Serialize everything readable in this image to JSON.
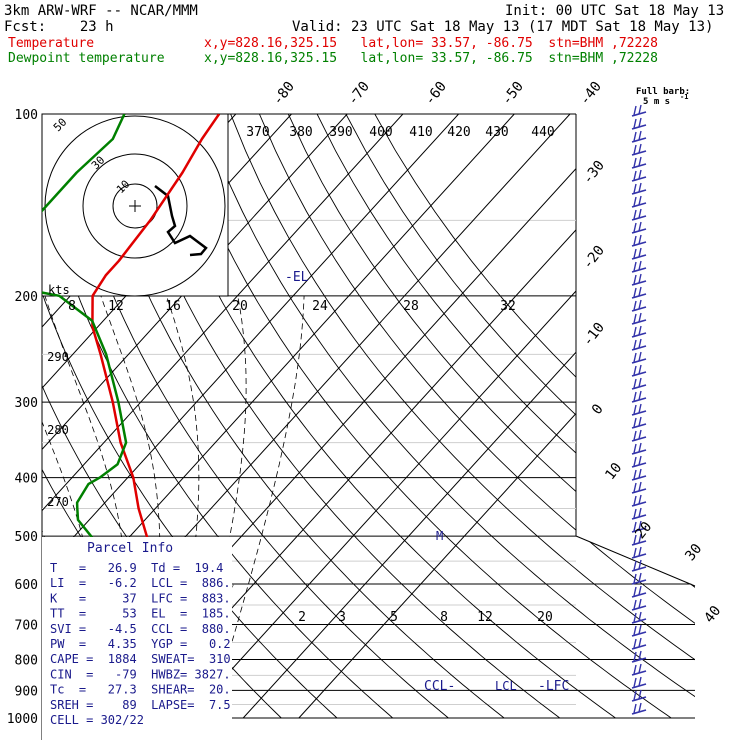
{
  "header": {
    "model": "3km ARW-WRF -- NCAR/MMM",
    "init": "Init: 00 UTC Sat 18 May 13",
    "fcst": "Fcst:    23 h",
    "valid": "Valid: 23 UTC Sat 18 May 13 (17 MDT Sat 18 May 13)",
    "temp_label": "Temperature",
    "temp_loc": "x,y=828.16,325.15   lat,lon= 33.57, -86.75  stn=BHM ,72228",
    "dew_label": "Dewpoint temperature",
    "dew_loc": "x,y=828.16,325.15   lat,lon= 33.57, -86.75  stn=BHM ,72228"
  },
  "labels": {
    "full_barb": "Full barb:",
    "barb_unit": "5 m s",
    "barb_exp": "-1",
    "kts": "kts",
    "el": "-EL",
    "ccl": "CCL-",
    "lcl": "LCL",
    "lfc": "-LFC",
    "m": "M"
  },
  "parcel_info": {
    "title": "Parcel Info",
    "rows": [
      "T   =   26.9  Td =  19.4",
      "LI  =   -6.2  LCL =  886.",
      "K   =     37  LFC =  883.",
      "TT  =     53  EL  =  185.",
      "SVI =   -4.5  CCL =  880.",
      "PW  =   4.35  YGP =   0.2",
      "CAPE =  1884  SWEAT=  310",
      "CIN  =   -79  HWBZ= 3827.",
      "Tc  =   27.3  SHEAR=  20.",
      "SREH =    89  LAPSE=  7.5",
      "CELL = 302/22"
    ]
  },
  "chart_data": {
    "type": "line",
    "title": "",
    "xlabel": "",
    "ylabel": "",
    "y_scale": "log",
    "pressure_levels": [
      "100",
      "200",
      "300",
      "400",
      "500",
      "600",
      "700",
      "800",
      "900",
      "1000"
    ],
    "temperature_axis_labels": [
      "-80",
      "-70",
      "-60",
      "-50",
      "-40",
      "-30",
      "-20",
      "-10",
      "0",
      "10",
      "20",
      "30",
      "40"
    ],
    "theta_labels": [
      "370",
      "380",
      "390",
      "400",
      "410",
      "420",
      "430",
      "440"
    ],
    "mixing_ratio_top_labels": [
      "8",
      "12",
      "16",
      "20",
      "24",
      "28",
      "32"
    ],
    "mixing_ratio_low_labels": [
      "2",
      "3",
      "5",
      "8",
      "12",
      "20"
    ],
    "theta_left_labels": [
      "290",
      "280",
      "270"
    ],
    "hodograph_ring_labels": [
      "50",
      "30",
      "10"
    ],
    "series": [
      {
        "name": "Temperature",
        "color": "#e00000",
        "pressure": [
          1000,
          975,
          950,
          925,
          900,
          875,
          850,
          825,
          800,
          775,
          750,
          725,
          700,
          650,
          600,
          550,
          500,
          450,
          400,
          350,
          300,
          250,
          225,
          200,
          185,
          175,
          150,
          125,
          110,
          100
        ],
        "values": [
          28,
          27,
          27,
          27,
          26,
          24,
          24,
          22,
          20,
          18,
          16,
          14,
          12,
          7,
          3,
          -2,
          -7,
          -13,
          -19,
          -27,
          -35,
          -45,
          -51,
          -56,
          -57,
          -57,
          -58,
          -60,
          -62,
          -63
        ]
      },
      {
        "name": "Dewpoint temperature",
        "color": "#008000",
        "pressure": [
          1000,
          975,
          950,
          925,
          900,
          875,
          850,
          800,
          750,
          700,
          650,
          600,
          550,
          500,
          470,
          450,
          440,
          410,
          400,
          380,
          350,
          300,
          250,
          220,
          200,
          190,
          175,
          150,
          125,
          110,
          100
        ],
        "values": [
          20,
          20,
          19,
          19,
          16,
          15,
          14,
          11,
          8,
          5,
          1,
          -3,
          -10,
          -17,
          -22,
          -24,
          -25,
          -26,
          -25,
          -24,
          -26,
          -34,
          -44,
          -52,
          -62,
          -77,
          -80,
          -79,
          -79,
          -78,
          -80
        ]
      }
    ]
  }
}
